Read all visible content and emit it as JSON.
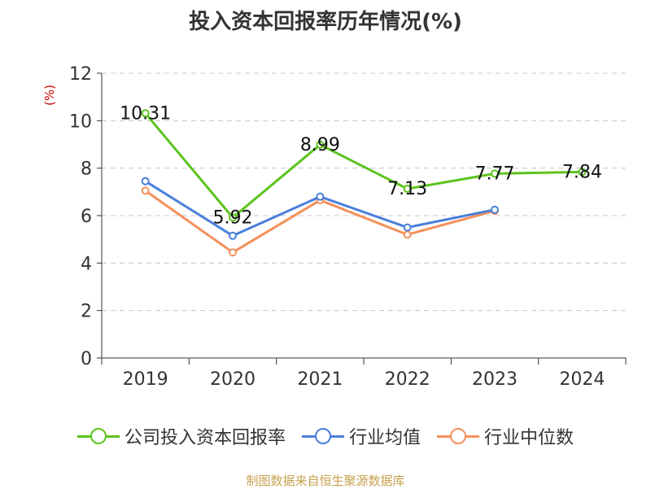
{
  "title": "投入资本回报率历年情况(%)",
  "unit_label": "(%)",
  "source": "制图数据来自恒生聚源数据库",
  "colors": {
    "company": "#5cc31e",
    "industry_avg": "#4a7fdc",
    "industry_median": "#f4905a",
    "grid": "#c8c8c8",
    "axis": "#333333"
  },
  "chart_data": {
    "type": "line",
    "categories": [
      "2019",
      "2020",
      "2021",
      "2022",
      "2023",
      "2024"
    ],
    "ylim": [
      0,
      12
    ],
    "yticks": [
      "0",
      "2",
      "4",
      "6",
      "8",
      "10",
      "12"
    ],
    "grid": true,
    "legend_position": "bottom",
    "series": [
      {
        "name": "公司投入资本回报率",
        "values": [
          10.31,
          5.92,
          8.99,
          7.13,
          7.77,
          7.84
        ],
        "labels": [
          "10.31",
          "5.92",
          "8.99",
          "7.13",
          "7.77",
          "7.84"
        ]
      },
      {
        "name": "行业均值",
        "values": [
          7.45,
          5.15,
          6.8,
          5.5,
          6.25,
          null
        ]
      },
      {
        "name": "行业中位数",
        "values": [
          7.05,
          4.45,
          6.65,
          5.2,
          6.2,
          null
        ]
      }
    ]
  }
}
